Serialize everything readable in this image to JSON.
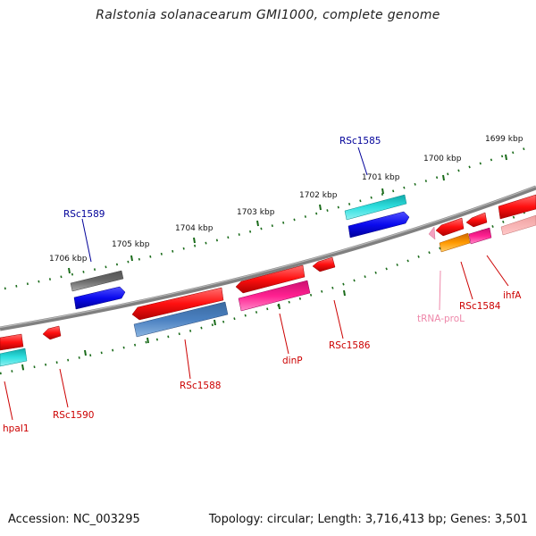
{
  "title": "Ralstonia solanacearum GMI1000, complete genome",
  "footer": {
    "accession": "Accession: NC_003295",
    "topology": "Topology: circular; Length: 3,716,413 bp; Genes: 3,501"
  },
  "colors": {
    "backbone": "#808080",
    "tick": "#1a6b1a",
    "label_forward": "#000099",
    "label_reverse": "#cc0000",
    "label_trna": "#ee88aa"
  },
  "ticks": [
    "1699 kbp",
    "1700 kbp",
    "1701 kbp",
    "1702 kbp",
    "1703 kbp",
    "1704 kbp",
    "1705 kbp",
    "1706 kbp"
  ],
  "genes_forward": [
    "RSc1585",
    "RSc1589"
  ],
  "genes_reverse": [
    "RSc1584",
    "ihfA",
    "tRNA-proL",
    "RSc1586",
    "dinP",
    "RSc1588",
    "RSc1590",
    "hpaI1"
  ]
}
